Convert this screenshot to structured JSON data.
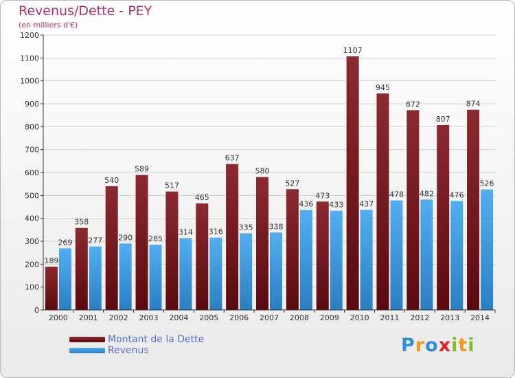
{
  "chart_data": {
    "type": "bar",
    "title": "Revenus/Dette - PEY",
    "subtitle": "(en milliers d'€)",
    "categories": [
      "2000",
      "2001",
      "2002",
      "2003",
      "2004",
      "2005",
      "2006",
      "2007",
      "2008",
      "2009",
      "2010",
      "2011",
      "2012",
      "2013",
      "2014"
    ],
    "series": [
      {
        "name": "Montant de la Dette",
        "color": "#7a1a1f",
        "values": [
          189,
          358,
          540,
          589,
          517,
          465,
          637,
          580,
          527,
          473,
          1107,
          945,
          872,
          807,
          874
        ]
      },
      {
        "name": "Revenus",
        "color": "#3d9ee0",
        "values": [
          269,
          277,
          290,
          285,
          314,
          316,
          335,
          338,
          436,
          433,
          437,
          478,
          482,
          476,
          526
        ]
      }
    ],
    "ylim": [
      0,
      1200
    ],
    "yticks": [
      0,
      100,
      200,
      300,
      400,
      500,
      600,
      700,
      800,
      900,
      1000,
      1100,
      1200
    ],
    "grid": true,
    "legend_position": "bottom-left"
  },
  "logo": {
    "letters": [
      {
        "char": "P",
        "color": "#2f8fd8"
      },
      {
        "char": "r",
        "color": "#f29a1c"
      },
      {
        "char": "o",
        "color": "#2f8fd8"
      },
      {
        "char": "x",
        "color": "#e2242a"
      },
      {
        "char": "i",
        "color": "#7cbf2b"
      },
      {
        "char": "t",
        "color": "#f29a1c"
      },
      {
        "char": "i",
        "color": "#7cbf2b"
      }
    ]
  }
}
